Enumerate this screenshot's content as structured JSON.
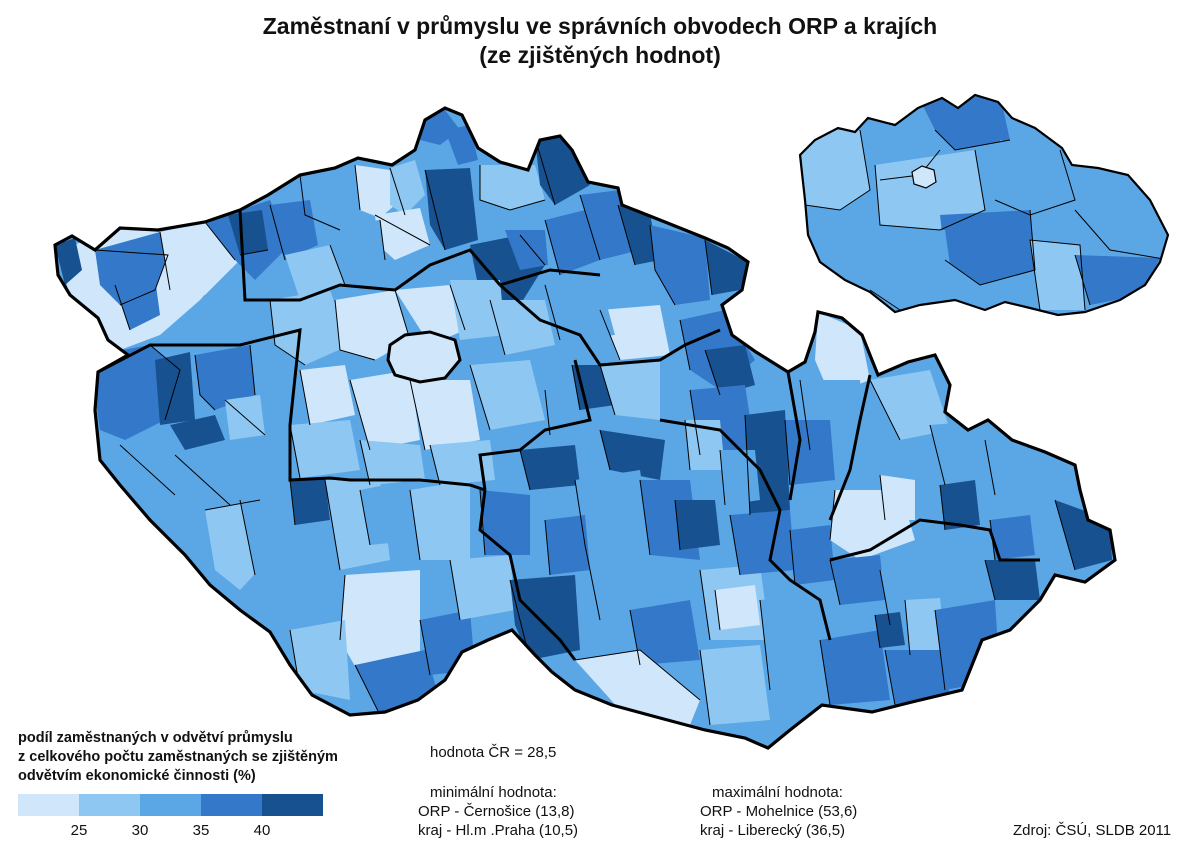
{
  "title": {
    "line1": "Zaměstnaní v průmyslu ve správních obvodech ORP a krajích",
    "line2": "(ze zjištěných hodnot)"
  },
  "legend": {
    "title_lines": [
      "podíl zaměstnaných v odvětví průmyslu",
      "z celkového počtu zaměstnaných se zjištěným",
      "odvětvím ekonomické činnosti (%)"
    ],
    "colors": [
      "#cfe6fb",
      "#8ec8f2",
      "#5ba7e6",
      "#3479c9",
      "#175190"
    ],
    "breaks": [
      "25",
      "30",
      "35",
      "40"
    ]
  },
  "stats": {
    "cr_value": "hodnota ČR = 28,5",
    "min_label": "minimální hodnota:",
    "min_orp": "ORP - Černošice (13,8)",
    "min_kraj": "kraj   - Hl.m .Praha  (10,5)",
    "max_label": "maximální hodnota:",
    "max_orp": "ORP - Mohelnice (53,6)",
    "max_kraj": "kraj   - Liberecký (36,5)"
  },
  "source": "Zdroj: ČSÚ, SLDB 2011"
}
